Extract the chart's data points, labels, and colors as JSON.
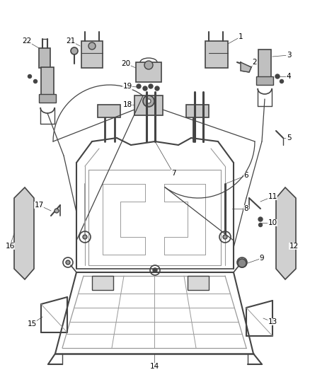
{
  "background_color": "#ffffff",
  "line_color": "#999999",
  "dark_line_color": "#444444",
  "text_color": "#000000",
  "fig_width": 4.38,
  "fig_height": 5.33,
  "dpi": 100
}
